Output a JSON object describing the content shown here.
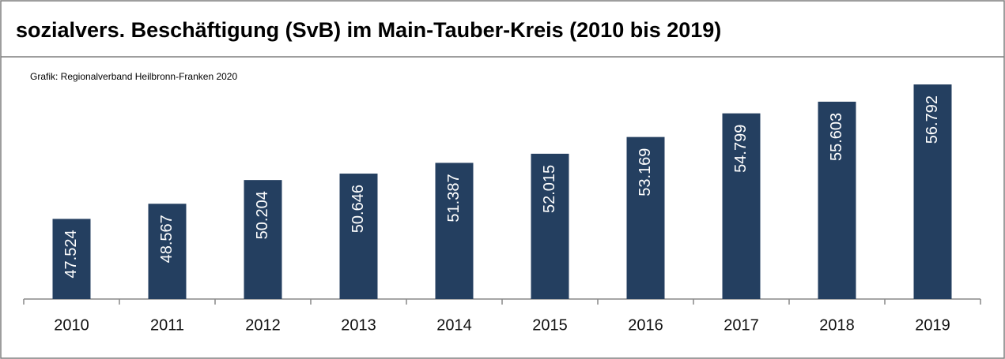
{
  "chart_data": {
    "type": "bar",
    "title": "sozialvers. Beschäftigung (SvB) im Main-Tauber-Kreis (2010 bis 2019)",
    "subtitle": "Grafik: Regionalverband Heilbronn-Franken 2020",
    "categories": [
      "2010",
      "2011",
      "2012",
      "2013",
      "2014",
      "2015",
      "2016",
      "2017",
      "2018",
      "2019"
    ],
    "values": [
      47524,
      48567,
      50204,
      50646,
      51387,
      52015,
      53169,
      54799,
      55603,
      56792
    ],
    "value_labels": [
      "47.524",
      "48.567",
      "50.204",
      "50.646",
      "51.387",
      "52.015",
      "53.169",
      "54.799",
      "55.603",
      "56.792"
    ],
    "color": "#243f60",
    "ylim": [
      42000,
      57500
    ]
  }
}
